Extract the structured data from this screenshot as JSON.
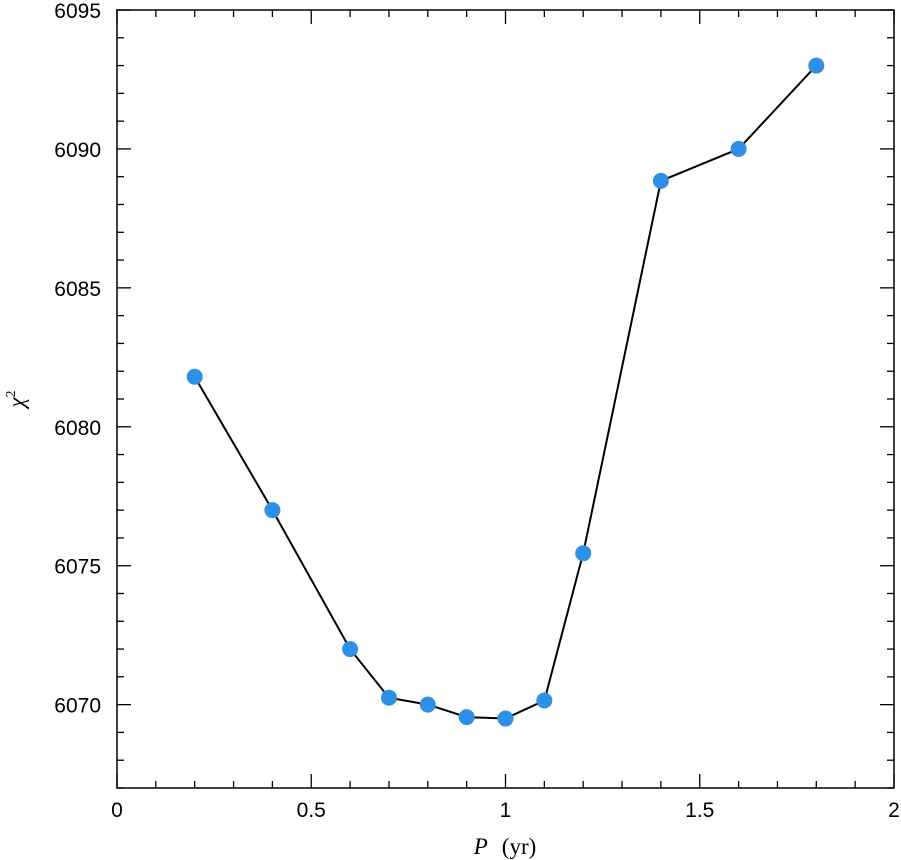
{
  "chart_data": {
    "type": "line",
    "xlabel": {
      "var": "P",
      "unit": "(yr)"
    },
    "ylabel": {
      "base": "χ",
      "sup": "2"
    },
    "xlim": [
      0,
      2
    ],
    "ylim": [
      6067,
      6095
    ],
    "x_ticks": [
      "0",
      "0.5",
      "1",
      "1.5",
      "2"
    ],
    "y_ticks": [
      "6070",
      "6075",
      "6080",
      "6085",
      "6090",
      "6095"
    ],
    "x_tick_values": [
      0,
      0.5,
      1,
      1.5,
      2
    ],
    "y_tick_values": [
      6070,
      6075,
      6080,
      6085,
      6090,
      6095
    ],
    "x_minor_step": 0.1,
    "y_minor_step": 1,
    "grid": false,
    "legend": "none",
    "marker_color": "#2e8fe6",
    "line_color": "#000000",
    "series": [
      {
        "x": [
          0.2,
          0.4,
          0.6,
          0.7,
          0.8,
          0.9,
          1.0,
          1.1,
          1.2,
          1.4,
          1.6,
          1.8
        ],
        "y": [
          6081.8,
          6077.0,
          6072.0,
          6070.25,
          6070.0,
          6069.55,
          6069.5,
          6070.15,
          6075.45,
          6088.85,
          6090.0,
          6093.0
        ]
      }
    ]
  }
}
